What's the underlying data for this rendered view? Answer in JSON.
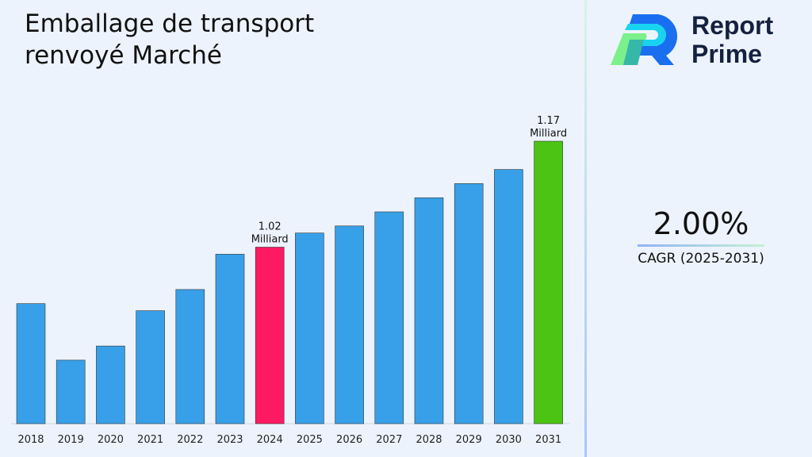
{
  "title": "Emballage de transport renvoyé Marché",
  "brand": {
    "line1": "Report",
    "line2": "Prime"
  },
  "cagr": {
    "value": "2.00%",
    "label": "CAGR (2025-2031)"
  },
  "chart_data": {
    "type": "bar",
    "categories": [
      "2018",
      "2019",
      "2020",
      "2021",
      "2022",
      "2023",
      "2024",
      "2025",
      "2026",
      "2027",
      "2028",
      "2029",
      "2030",
      "2031"
    ],
    "series": [
      {
        "values": [
          0.94,
          0.86,
          0.88,
          0.93,
          0.96,
          1.01,
          1.02,
          1.04,
          1.05,
          1.07,
          1.09,
          1.11,
          1.13,
          1.17
        ]
      }
    ],
    "annotations": [
      {
        "category": "2024",
        "line1": "1.02",
        "line2": "Milliard"
      },
      {
        "category": "2031",
        "line1": "1.17",
        "line2": "Milliard"
      }
    ],
    "ylim": [
      0.77,
      1.17
    ],
    "grid": false,
    "colors": {
      "default": "#38a0e8",
      "highlight_2024": "#fe1a62",
      "highlight_2031": "#4cc414"
    }
  }
}
